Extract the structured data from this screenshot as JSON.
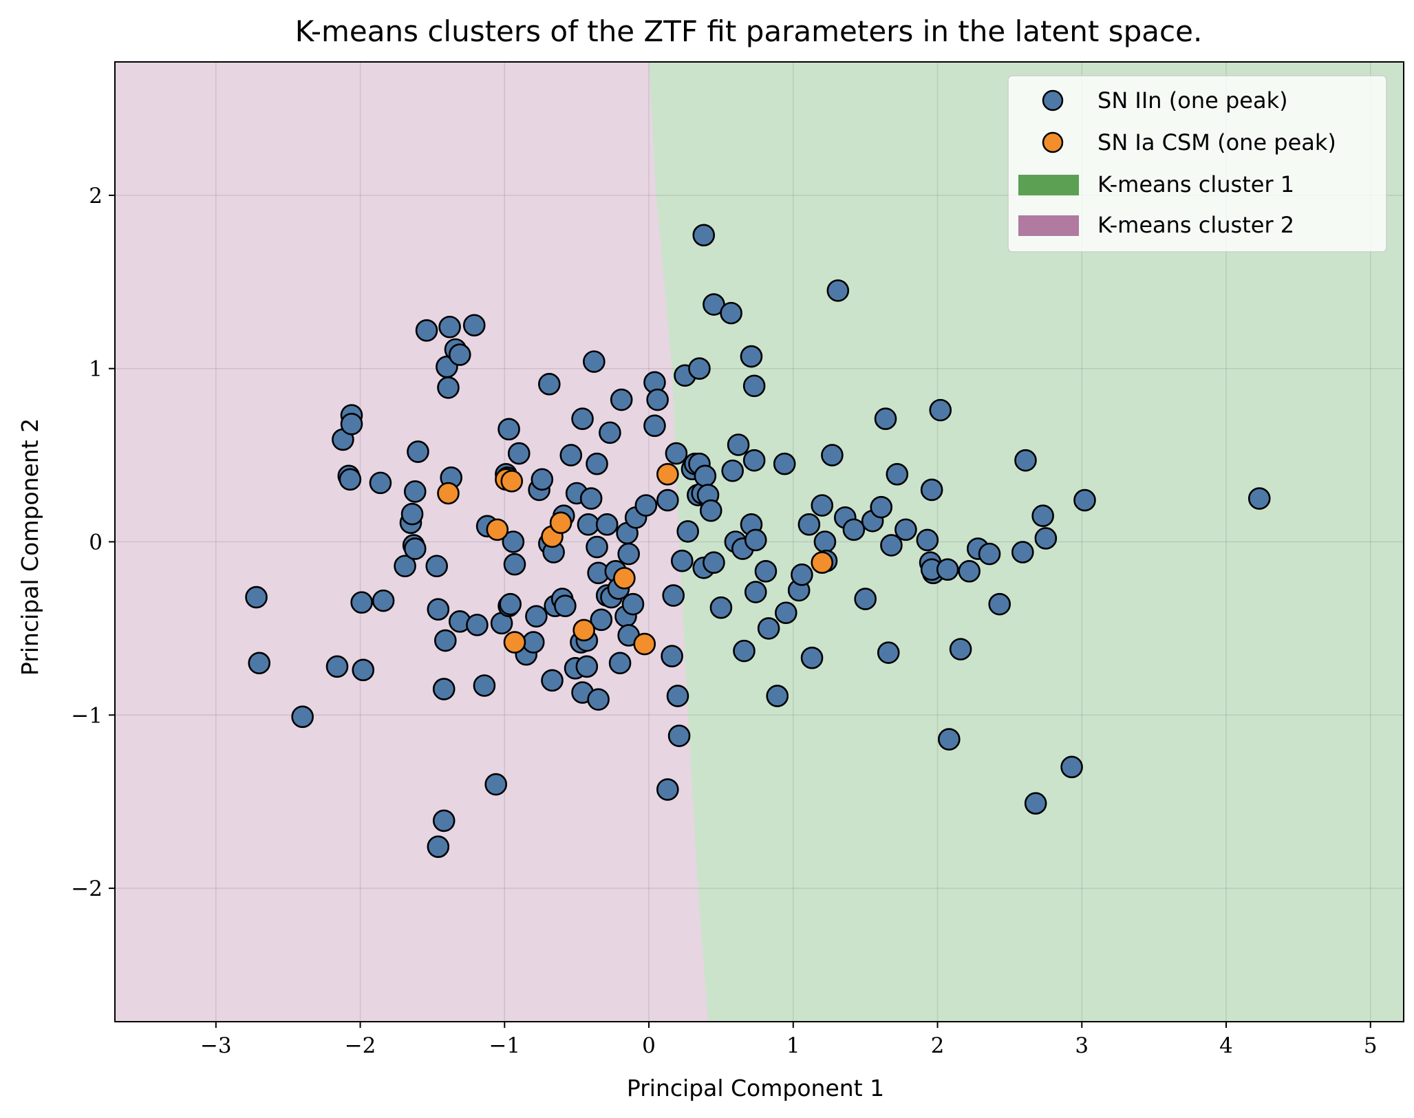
{
  "chart_data": {
    "type": "scatter",
    "title": "K-means clusters of the ZTF fit parameters in the latent space.",
    "xlabel": "Principal Component 1",
    "ylabel": "Principal Component 2",
    "xlim": [
      -3.7,
      5.23
    ],
    "ylim": [
      -2.77,
      2.77
    ],
    "grid": true,
    "legend_position": "top-right",
    "x_ticks": [
      -3,
      -2,
      -1,
      0,
      1,
      2,
      3,
      4,
      5
    ],
    "x_tick_labels": [
      "−3",
      "−2",
      "−1",
      "0",
      "1",
      "2",
      "3",
      "4",
      "5"
    ],
    "y_ticks": [
      -2,
      -1,
      0,
      1,
      2
    ],
    "y_tick_labels": [
      "−2",
      "−1",
      "0",
      "1",
      "2"
    ],
    "regions": [
      {
        "name": "K-means cluster 1",
        "color": "#5ba053",
        "fill": "#cce3cb"
      },
      {
        "name": "K-means cluster 2",
        "color": "#b07aa1",
        "fill": "#e7d5e2"
      }
    ],
    "decision_boundary": [
      [
        0.0,
        2.77
      ],
      [
        0.05,
        2.0
      ],
      [
        0.16,
        1.0
      ],
      [
        0.21,
        0.0
      ],
      [
        0.27,
        -1.0
      ],
      [
        0.34,
        -2.0
      ],
      [
        0.41,
        -2.77
      ]
    ],
    "series": [
      {
        "name": "SN IIn (one peak)",
        "color": "#4e79a7",
        "points": [
          [
            -2.72,
            -0.32
          ],
          [
            -2.7,
            -0.7
          ],
          [
            -2.4,
            -1.01
          ],
          [
            -2.16,
            -0.72
          ],
          [
            -2.12,
            0.59
          ],
          [
            -2.08,
            0.38
          ],
          [
            -2.07,
            0.36
          ],
          [
            -2.06,
            0.73
          ],
          [
            -2.06,
            0.68
          ],
          [
            -1.99,
            -0.35
          ],
          [
            -1.98,
            -0.74
          ],
          [
            -1.86,
            0.34
          ],
          [
            -1.84,
            -0.34
          ],
          [
            -1.69,
            -0.14
          ],
          [
            -1.65,
            0.11
          ],
          [
            -1.64,
            0.16
          ],
          [
            -1.63,
            -0.02
          ],
          [
            -1.62,
            0.29
          ],
          [
            -1.62,
            -0.04
          ],
          [
            -1.6,
            0.52
          ],
          [
            -1.54,
            1.22
          ],
          [
            -1.47,
            -0.14
          ],
          [
            -1.46,
            -0.39
          ],
          [
            -1.46,
            -1.76
          ],
          [
            -1.42,
            -1.61
          ],
          [
            -1.42,
            -0.85
          ],
          [
            -1.41,
            -0.57
          ],
          [
            -1.4,
            1.01
          ],
          [
            -1.39,
            0.89
          ],
          [
            -1.38,
            1.24
          ],
          [
            -1.37,
            0.37
          ],
          [
            -1.34,
            1.11
          ],
          [
            -1.31,
            1.08
          ],
          [
            -1.31,
            -0.46
          ],
          [
            -1.21,
            1.25
          ],
          [
            -1.19,
            -0.48
          ],
          [
            -1.14,
            -0.83
          ],
          [
            -1.12,
            0.09
          ],
          [
            -1.06,
            -1.4
          ],
          [
            -1.02,
            -0.47
          ],
          [
            -0.99,
            0.39
          ],
          [
            -0.98,
            0.37
          ],
          [
            -0.97,
            0.65
          ],
          [
            -0.97,
            -0.37
          ],
          [
            -0.96,
            -0.36
          ],
          [
            -0.94,
            0.0
          ],
          [
            -0.93,
            -0.13
          ],
          [
            -0.9,
            0.51
          ],
          [
            -0.85,
            -0.65
          ],
          [
            -0.8,
            -0.58
          ],
          [
            -0.78,
            -0.43
          ],
          [
            -0.76,
            0.3
          ],
          [
            -0.74,
            0.36
          ],
          [
            -0.69,
            0.91
          ],
          [
            -0.69,
            -0.01
          ],
          [
            -0.67,
            -0.8
          ],
          [
            -0.66,
            -0.06
          ],
          [
            -0.65,
            -0.37
          ],
          [
            -0.6,
            -0.33
          ],
          [
            -0.59,
            0.15
          ],
          [
            -0.58,
            -0.37
          ],
          [
            -0.54,
            0.5
          ],
          [
            -0.51,
            -0.73
          ],
          [
            -0.5,
            0.28
          ],
          [
            -0.47,
            -0.58
          ],
          [
            -0.46,
            0.71
          ],
          [
            -0.46,
            -0.87
          ],
          [
            -0.43,
            -0.72
          ],
          [
            -0.43,
            -0.57
          ],
          [
            -0.42,
            0.1
          ],
          [
            -0.4,
            0.25
          ],
          [
            -0.38,
            1.04
          ],
          [
            -0.36,
            0.45
          ],
          [
            -0.36,
            -0.03
          ],
          [
            -0.35,
            -0.91
          ],
          [
            -0.35,
            -0.18
          ],
          [
            -0.33,
            -0.45
          ],
          [
            -0.29,
            -0.31
          ],
          [
            -0.29,
            0.1
          ],
          [
            -0.27,
            0.63
          ],
          [
            -0.26,
            -0.32
          ],
          [
            -0.23,
            -0.17
          ],
          [
            -0.21,
            -0.27
          ],
          [
            -0.2,
            -0.7
          ],
          [
            -0.19,
            0.82
          ],
          [
            -0.16,
            -0.43
          ],
          [
            -0.15,
            0.05
          ],
          [
            -0.14,
            -0.07
          ],
          [
            -0.14,
            -0.54
          ],
          [
            -0.11,
            -0.36
          ],
          [
            -0.09,
            0.14
          ],
          [
            -0.02,
            0.21
          ],
          [
            0.04,
            0.92
          ],
          [
            0.04,
            0.67
          ],
          [
            0.06,
            0.82
          ],
          [
            0.13,
            0.24
          ],
          [
            0.13,
            -1.43
          ],
          [
            0.16,
            -0.66
          ],
          [
            0.17,
            -0.31
          ],
          [
            0.19,
            0.51
          ],
          [
            0.2,
            -0.89
          ],
          [
            0.21,
            -1.12
          ],
          [
            0.23,
            -0.11
          ],
          [
            0.25,
            0.96
          ],
          [
            0.27,
            0.06
          ],
          [
            0.3,
            0.42
          ],
          [
            0.32,
            0.45
          ],
          [
            0.34,
            0.27
          ],
          [
            0.35,
            0.45
          ],
          [
            0.35,
            1.0
          ],
          [
            0.37,
            0.28
          ],
          [
            0.38,
            -0.15
          ],
          [
            0.38,
            1.77
          ],
          [
            0.39,
            0.38
          ],
          [
            0.41,
            0.27
          ],
          [
            0.43,
            0.18
          ],
          [
            0.45,
            -0.12
          ],
          [
            0.45,
            1.37
          ],
          [
            0.5,
            -0.38
          ],
          [
            0.57,
            1.32
          ],
          [
            0.58,
            0.41
          ],
          [
            0.6,
            0.0
          ],
          [
            0.62,
            0.56
          ],
          [
            0.65,
            -0.04
          ],
          [
            0.66,
            -0.63
          ],
          [
            0.71,
            0.1
          ],
          [
            0.71,
            1.07
          ],
          [
            0.73,
            0.9
          ],
          [
            0.73,
            0.47
          ],
          [
            0.74,
            -0.29
          ],
          [
            0.74,
            0.01
          ],
          [
            0.81,
            -0.17
          ],
          [
            0.83,
            -0.5
          ],
          [
            0.89,
            -0.89
          ],
          [
            0.94,
            0.45
          ],
          [
            0.95,
            -0.41
          ],
          [
            1.04,
            -0.28
          ],
          [
            1.06,
            -0.19
          ],
          [
            1.11,
            0.1
          ],
          [
            1.13,
            -0.67
          ],
          [
            1.2,
            0.21
          ],
          [
            1.22,
            0.0
          ],
          [
            1.23,
            -0.11
          ],
          [
            1.27,
            0.5
          ],
          [
            1.31,
            1.45
          ],
          [
            1.36,
            0.14
          ],
          [
            1.42,
            0.07
          ],
          [
            1.5,
            -0.33
          ],
          [
            1.55,
            0.12
          ],
          [
            1.61,
            0.2
          ],
          [
            1.64,
            0.71
          ],
          [
            1.66,
            -0.64
          ],
          [
            1.68,
            -0.02
          ],
          [
            1.72,
            0.39
          ],
          [
            1.78,
            0.07
          ],
          [
            1.93,
            0.01
          ],
          [
            1.95,
            -0.12
          ],
          [
            1.96,
            0.3
          ],
          [
            1.97,
            -0.18
          ],
          [
            1.96,
            -0.16
          ],
          [
            2.02,
            0.76
          ],
          [
            2.07,
            -0.16
          ],
          [
            2.08,
            -1.14
          ],
          [
            2.16,
            -0.62
          ],
          [
            2.22,
            -0.17
          ],
          [
            2.28,
            -0.04
          ],
          [
            2.36,
            -0.07
          ],
          [
            2.43,
            -0.36
          ],
          [
            2.59,
            -0.06
          ],
          [
            2.61,
            0.47
          ],
          [
            2.68,
            -1.51
          ],
          [
            2.73,
            0.15
          ],
          [
            2.75,
            0.02
          ],
          [
            2.93,
            -1.3
          ],
          [
            3.02,
            0.24
          ],
          [
            4.23,
            0.25
          ]
        ]
      },
      {
        "name": "SN Ia CSM (one peak)",
        "color": "#f28e2b",
        "points": [
          [
            -1.39,
            0.28
          ],
          [
            -1.05,
            0.07
          ],
          [
            -0.99,
            0.36
          ],
          [
            -0.95,
            0.35
          ],
          [
            -0.93,
            -0.58
          ],
          [
            -0.67,
            0.03
          ],
          [
            -0.61,
            0.11
          ],
          [
            -0.45,
            -0.51
          ],
          [
            -0.17,
            -0.21
          ],
          [
            -0.03,
            -0.59
          ],
          [
            0.13,
            0.39
          ],
          [
            1.2,
            -0.12
          ]
        ]
      }
    ]
  }
}
